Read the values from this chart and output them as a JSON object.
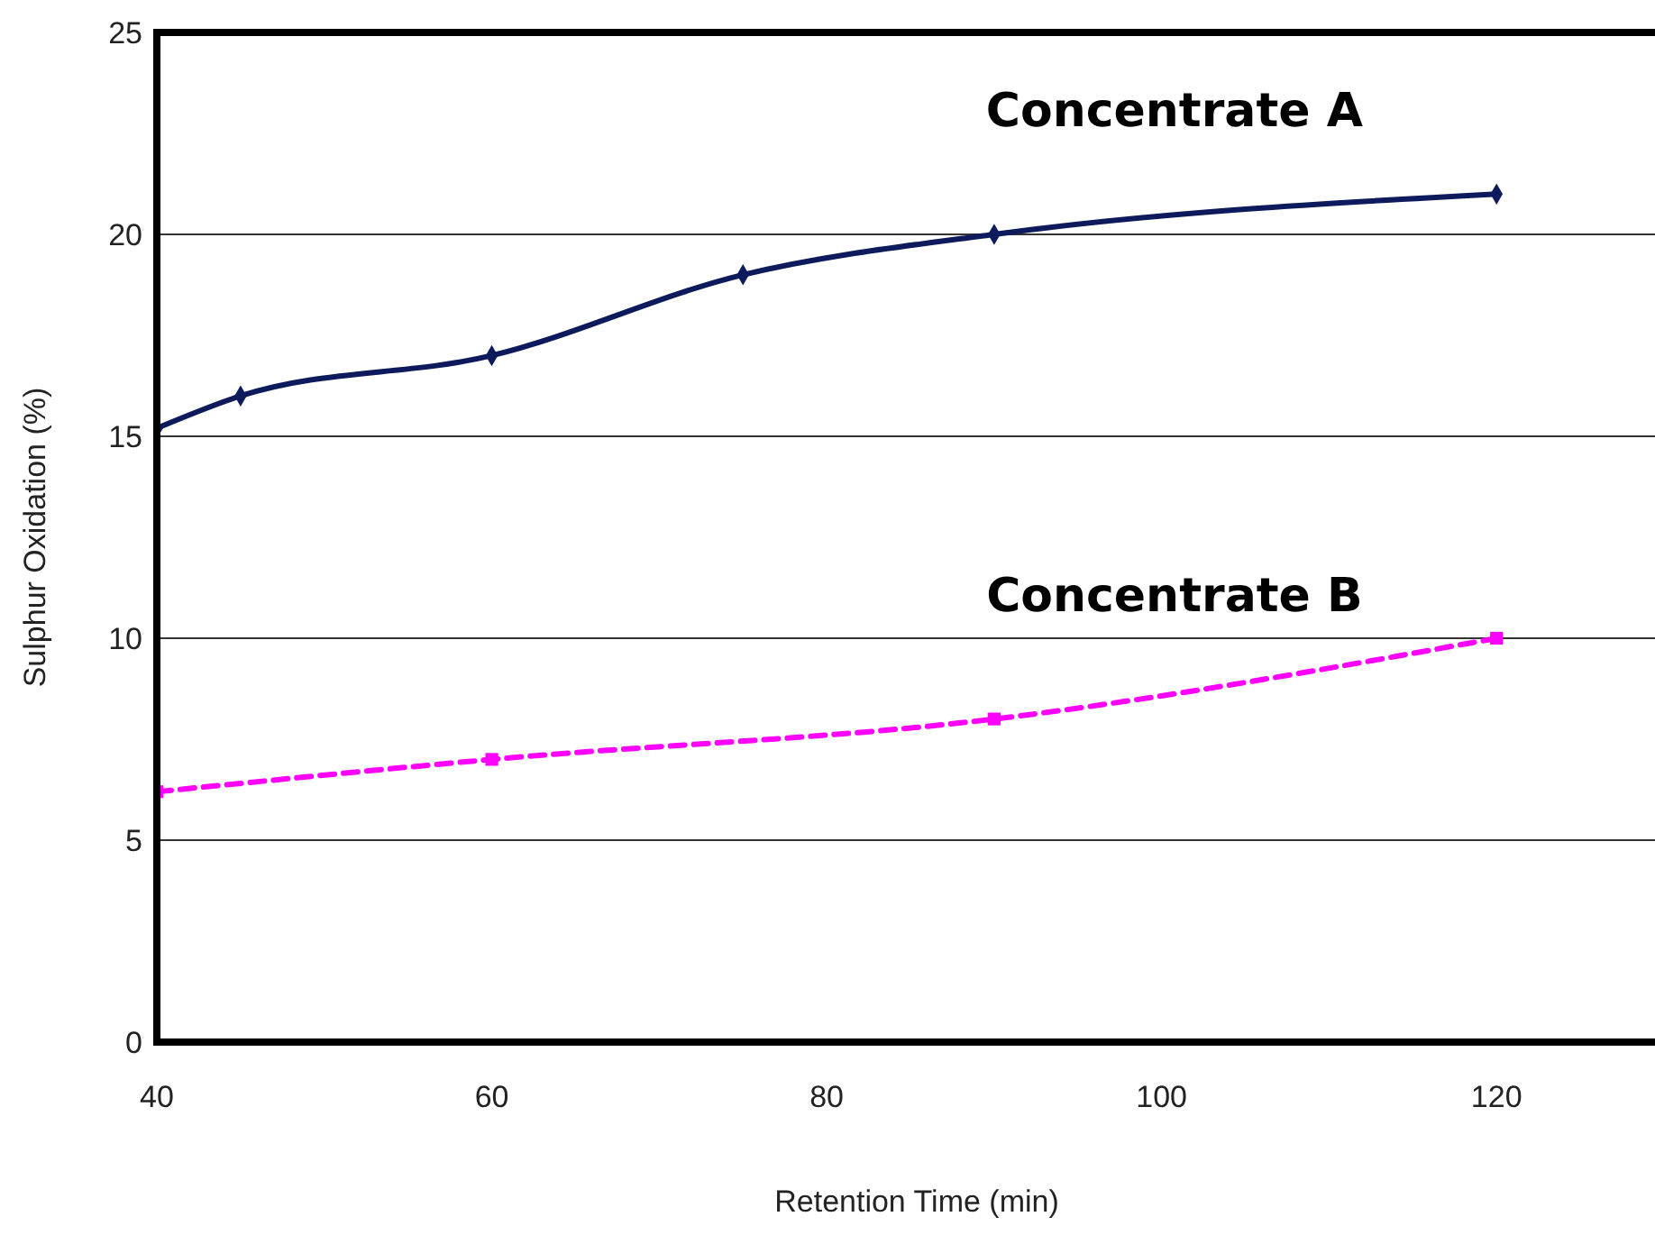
{
  "chart_data": {
    "type": "line",
    "xlabel": "Retention Time (min)",
    "ylabel": "Sulphur Oxidation (%)",
    "xlim": [
      40,
      130
    ],
    "xticks": [
      40,
      60,
      80,
      100,
      120
    ],
    "ylim": [
      0,
      25
    ],
    "yticks": [
      0,
      5,
      10,
      15,
      20,
      25
    ],
    "grid": "y",
    "legend": false,
    "series": [
      {
        "name": "Concentrate A",
        "color": "#0d1a5c",
        "marker": "diamond",
        "line_style": "solid",
        "x": [
          40,
          45,
          60,
          75,
          90,
          120
        ],
        "values": [
          15.2,
          16,
          17,
          19,
          20,
          21
        ]
      },
      {
        "name": "Concentrate B",
        "color": "#ff00ff",
        "marker": "square",
        "line_style": "dashed",
        "x": [
          40,
          60,
          90,
          120
        ],
        "values": [
          6.2,
          7,
          8,
          10
        ]
      }
    ]
  }
}
